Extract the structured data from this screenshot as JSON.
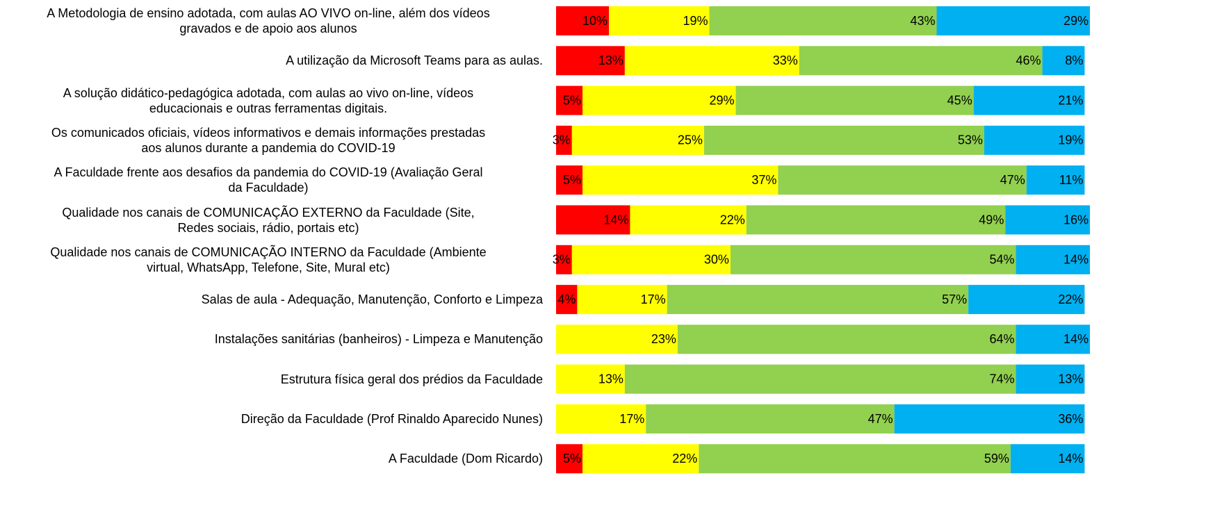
{
  "chart_data": {
    "type": "stacked-barh",
    "categories": [
      [
        "A Metodologia de ensino adotada, com aulas AO VIVO on-line, além dos vídeos",
        "gravados e de apoio aos alunos"
      ],
      [
        "A utilização da Microsoft Teams para as aulas."
      ],
      [
        "A solução didático-pedagógica adotada, com aulas ao vivo on-line, vídeos",
        "educacionais e outras ferramentas digitais."
      ],
      [
        "Os comunicados oficiais, vídeos informativos e demais informações prestadas",
        "aos alunos durante a pandemia do COVID-19"
      ],
      [
        "A Faculdade frente aos desafios da pandemia do COVID-19 (Avaliação Geral",
        "da Faculdade)"
      ],
      [
        "Qualidade nos canais de COMUNICAÇÃO EXTERNO da Faculdade (Site,",
        "Redes sociais, rádio, portais etc)"
      ],
      [
        "Qualidade nos canais de COMUNICAÇÃO INTERNO da Faculdade (Ambiente",
        "virtual, WhatsApp, Telefone, Site, Mural etc)"
      ],
      [
        "Salas de aula - Adequação, Manutenção, Conforto e Limpeza"
      ],
      [
        "Instalações sanitárias (banheiros) - Limpeza e Manutenção"
      ],
      [
        "Estrutura física geral dos prédios da Faculdade"
      ],
      [
        "Direção da Faculdade (Prof Rinaldo Aparecido Nunes)"
      ],
      [
        "A Faculdade (Dom Ricardo)"
      ]
    ],
    "series": [
      {
        "color": "#ff0000",
        "values": [
          10,
          13,
          5,
          3,
          5,
          14,
          3,
          4,
          null,
          null,
          null,
          5
        ],
        "value_labels": [
          "10%",
          "13%",
          "5%",
          "3%",
          "5%",
          "14%",
          "3%",
          "4%",
          null,
          null,
          null,
          "5%"
        ]
      },
      {
        "color": "#ffff00",
        "values": [
          19,
          33,
          29,
          25,
          37,
          22,
          30,
          17,
          23,
          13,
          17,
          22
        ],
        "value_labels": [
          "19%",
          "33%",
          "29%",
          "25%",
          "37%",
          "22%",
          "30%",
          "17%",
          "23%",
          "13%",
          "17%",
          "22%"
        ]
      },
      {
        "color": "#92d050",
        "values": [
          43,
          46,
          45,
          53,
          47,
          49,
          54,
          57,
          64,
          74,
          47,
          59
        ],
        "value_labels": [
          "43%",
          "46%",
          "45%",
          "53%",
          "47%",
          "49%",
          "54%",
          "57%",
          "64%",
          "74%",
          "47%",
          "59%"
        ]
      },
      {
        "color": "#00b0f0",
        "values": [
          29,
          8,
          21,
          19,
          11,
          16,
          14,
          22,
          14,
          13,
          36,
          14
        ],
        "value_labels": [
          "29%",
          "8%",
          "21%",
          "19%",
          "11%",
          "16%",
          "14%",
          "22%",
          "14%",
          "13%",
          "36%",
          "14%"
        ]
      }
    ],
    "xlim": [
      0,
      101
    ]
  }
}
